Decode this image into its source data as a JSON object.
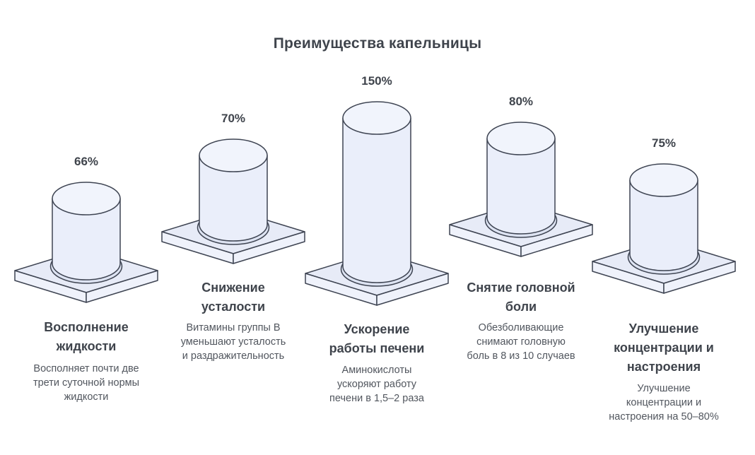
{
  "title": "Преимущества капельницы",
  "colors": {
    "background": "#ffffff",
    "outline": "#3e4452",
    "cylinder_fill": "#eaeefa",
    "cylinder_top_fill": "#f1f4fc",
    "platform_top_fill": "#e7ebf7",
    "platform_side_fill": "#eff2fb",
    "shadow_fill": "#dde3f2",
    "title_text": "#3f444c",
    "body_text": "#51565e"
  },
  "chart_data": {
    "type": "bar",
    "variant": "isometric-3d-cylinders-on-pedestals",
    "title": "Преимущества капельницы",
    "unit": "%",
    "legend": "none",
    "axes": "none",
    "categories": [
      "Восполнение жидкости",
      "Снижение усталости",
      "Ускорение работы печени",
      "Снятие головной боли",
      "Улучшение концентрации и настроения"
    ],
    "values": [
      66,
      70,
      150,
      80,
      75
    ],
    "columns": [
      {
        "value_pct": 66,
        "value_label": "66%",
        "heading": "Восполнение\nжидкости",
        "description": "Восполняет почти две\nтрети суточной нормы\nжидкости"
      },
      {
        "value_pct": 70,
        "value_label": "70%",
        "heading": "Снижение\nусталости",
        "description": "Витамины группы В\nуменьшают усталость\nи раздражительность"
      },
      {
        "value_pct": 150,
        "value_label": "150%",
        "heading": "Ускорение\nработы печени",
        "description": "Аминокислоты\nускоряют работу\nпечени в 1,5–2 раза"
      },
      {
        "value_pct": 80,
        "value_label": "80%",
        "heading": "Снятие головной\nболи",
        "description": "Обезболивающие\nснимают головную\nболь в 8 из 10 случаев"
      },
      {
        "value_pct": 75,
        "value_label": "75%",
        "heading": "Улучшение\nконцентрации и\nнастроения",
        "description": "Улучшение\nконцентрации и\nнастроения на 50–80%"
      }
    ]
  }
}
